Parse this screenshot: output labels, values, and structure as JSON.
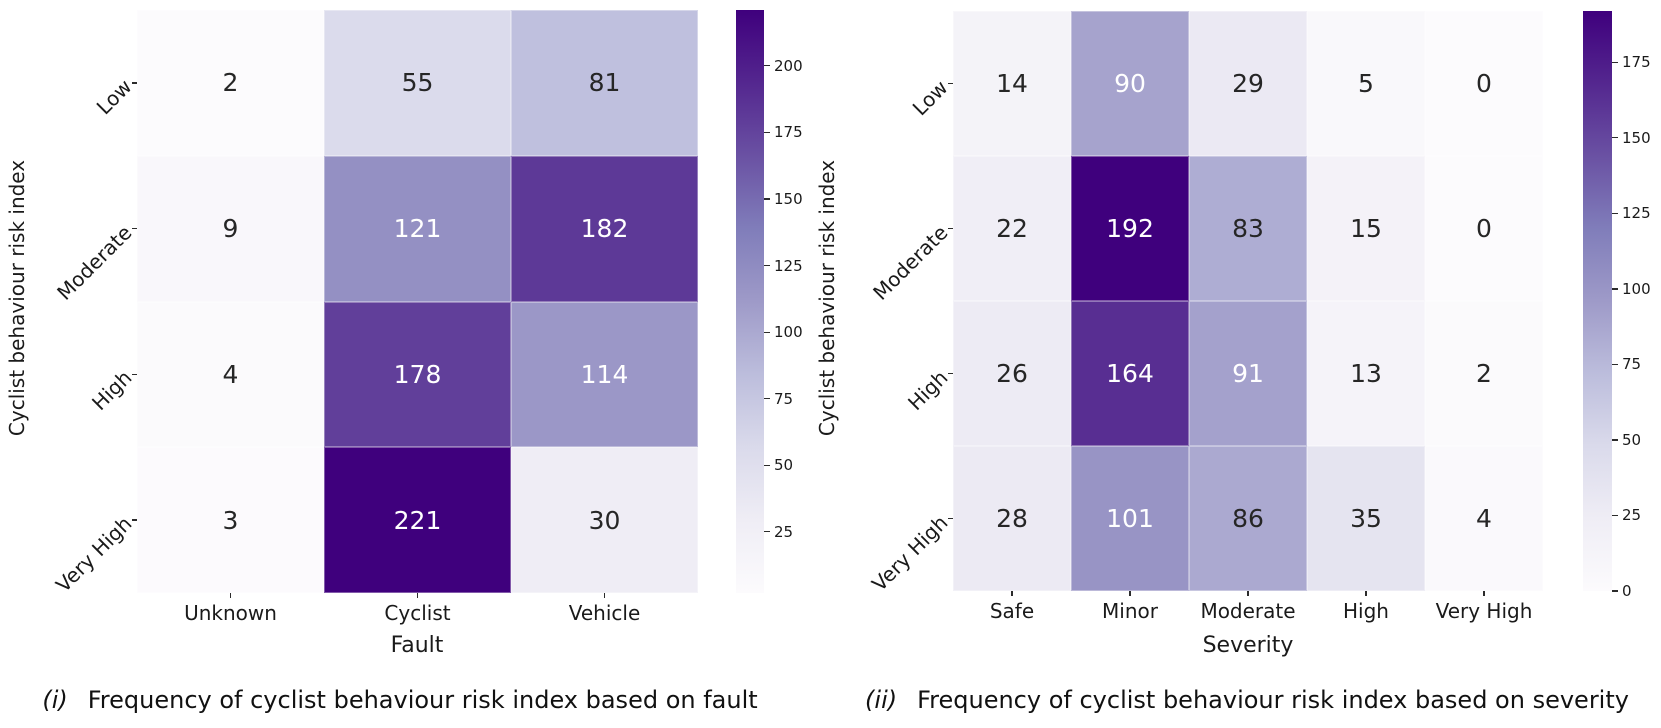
{
  "captions": [
    {
      "marker": "(i)",
      "text": "Frequency of cyclist behaviour risk index based on fault"
    },
    {
      "marker": "(ii)",
      "text": "Frequency of cyclist behaviour risk index based on severity"
    }
  ],
  "colors": {
    "background": "#ffffff",
    "annotation_light": "#ffffff",
    "annotation_dark": "#262626",
    "tick": "#2b2b2b",
    "cell_gridline": "rgba(255,255,255,0.35)"
  },
  "chart_data": [
    {
      "type": "heatmap",
      "title": "",
      "xlabel": "Fault",
      "ylabel": "Cyclist behaviour risk index",
      "x_categories": [
        "Unknown",
        "Cyclist",
        "Vehicle"
      ],
      "y_categories": [
        "Low",
        "Moderate",
        "High",
        "Very High"
      ],
      "values": [
        [
          2,
          55,
          81
        ],
        [
          9,
          121,
          182
        ],
        [
          4,
          178,
          114
        ],
        [
          3,
          221,
          30
        ]
      ],
      "annotated": true,
      "vmin": 2,
      "vmax": 221,
      "colorbar_position": "right",
      "colorbar_ticks": [
        25,
        50,
        75,
        100,
        125,
        150,
        175,
        200
      ],
      "colormap": "Purples",
      "colormap_anchors": [
        "#fcfbfd",
        "#efedf5",
        "#dadaeb",
        "#bcbddc",
        "#9e9ac8",
        "#807dba",
        "#6a51a3",
        "#54278f",
        "#3f007d"
      ]
    },
    {
      "type": "heatmap",
      "title": "",
      "xlabel": "Severity",
      "ylabel": "Cyclist behaviour risk index",
      "x_categories": [
        "Safe",
        "Minor",
        "Moderate",
        "High",
        "Very High"
      ],
      "y_categories": [
        "Low",
        "Moderate",
        "High",
        "Very High"
      ],
      "values": [
        [
          14,
          90,
          29,
          5,
          0
        ],
        [
          22,
          192,
          83,
          15,
          0
        ],
        [
          26,
          164,
          91,
          13,
          2
        ],
        [
          28,
          101,
          86,
          35,
          4
        ]
      ],
      "annotated": true,
      "vmin": 0,
      "vmax": 192,
      "colorbar_position": "right",
      "colorbar_ticks": [
        0,
        25,
        50,
        75,
        100,
        125,
        150,
        175
      ],
      "colormap": "Purples",
      "colormap_anchors": [
        "#fcfbfd",
        "#efedf5",
        "#dadaeb",
        "#bcbddc",
        "#9e9ac8",
        "#807dba",
        "#6a51a3",
        "#54278f",
        "#3f007d"
      ]
    }
  ]
}
